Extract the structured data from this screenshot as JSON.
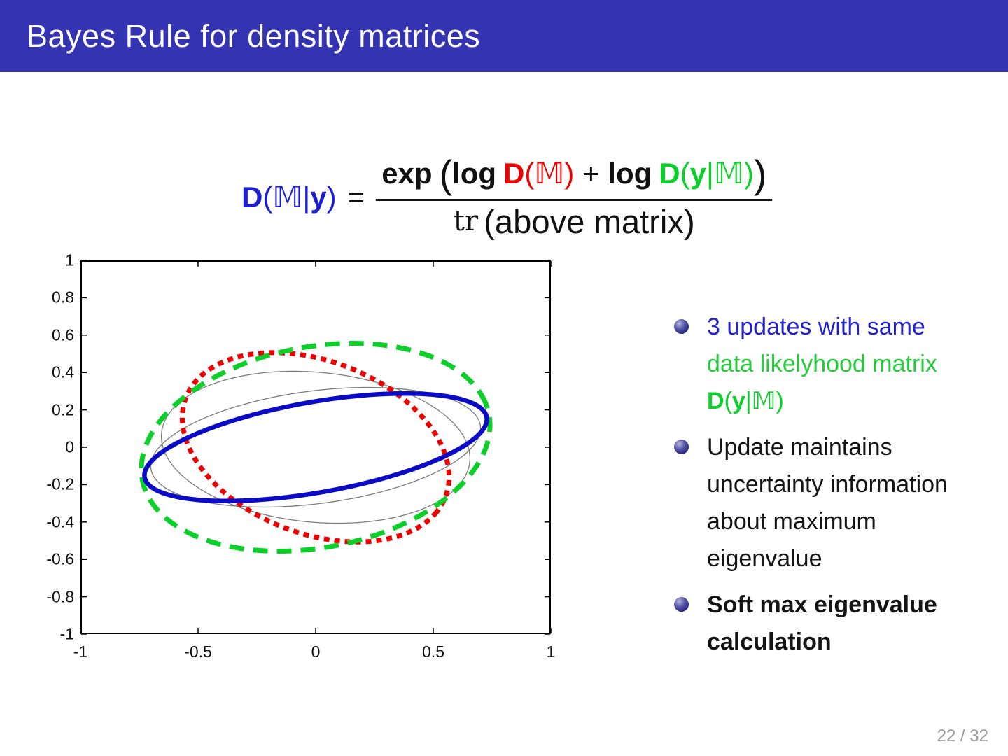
{
  "header": {
    "title": "Bayes Rule for density matrices",
    "bg_color": "#3433b2",
    "text_color": "#ffffff"
  },
  "formula": {
    "lhs": {
      "d": "D",
      "open": "(",
      "m": "𝕄",
      "pipe": "|",
      "y": "y",
      "close": ")"
    },
    "equals": "=",
    "numerator": {
      "exp": "exp",
      "open": "(",
      "log1": "log",
      "prior": {
        "d": "D",
        "open": "(",
        "m": "𝕄",
        "close": ")"
      },
      "plus": "+",
      "log2": "log",
      "likelihood": {
        "d": "D",
        "open": "(",
        "y": "y",
        "pipe": "|",
        "m": "𝕄",
        "close": ")"
      },
      "close": ")"
    },
    "denominator": {
      "tr": "tr",
      "rest": "(above matrix)"
    },
    "colors": {
      "posterior": "#1d1dd2",
      "prior": "#ee0000",
      "likelihood": "#0ccf2a",
      "ink": "#111111"
    }
  },
  "chart_data": {
    "type": "line",
    "title": "",
    "xlabel": "",
    "ylabel": "",
    "xlim": [
      -1,
      1
    ],
    "ylim": [
      -1,
      1
    ],
    "grid": false,
    "legend": "none",
    "xticks": [
      -1,
      -0.5,
      0,
      0.5,
      1
    ],
    "xtick_labels": [
      "-1",
      "-0.5",
      "0",
      "0.5",
      "1"
    ],
    "yticks": [
      1,
      0.8,
      0.6,
      0.4,
      0.2,
      0,
      -0.2,
      -0.4,
      -0.6,
      -0.8,
      -1
    ],
    "ytick_labels": [
      "1",
      "0.8",
      "0.6",
      "0.4",
      "0.2",
      "0",
      "-0.2",
      "-0.4",
      "-0.6",
      "-0.8",
      "-1"
    ],
    "series": [
      {
        "name": "intermediate-update-ellipse-1",
        "shape": "ellipse",
        "cx": 0,
        "cy": 0,
        "a": 0.66,
        "b": 0.4,
        "rot_deg": -8,
        "color": "#7d7d7d",
        "line": "solid",
        "width": 1.3
      },
      {
        "name": "intermediate-update-ellipse-2",
        "shape": "ellipse",
        "cx": 0,
        "cy": 0,
        "a": 0.71,
        "b": 0.3,
        "rot_deg": 10,
        "color": "#7d7d7d",
        "line": "solid",
        "width": 1.3
      },
      {
        "name": "prior-ellipse-red-dotted",
        "shape": "ellipse",
        "cx": 0,
        "cy": 0,
        "a": 0.62,
        "b": 0.44,
        "rot_deg": -35,
        "color": "#ee0000",
        "line": "dotted",
        "width": 7
      },
      {
        "name": "likelihood-ellipse-green-dashed",
        "shape": "ellipse",
        "cx": 0,
        "cy": 0,
        "a": 0.76,
        "b": 0.53,
        "rot_deg": 18,
        "color": "#0ccf2a",
        "line": "dashed",
        "width": 7
      },
      {
        "name": "posterior-ellipse-blue-solid",
        "shape": "ellipse",
        "cx": 0,
        "cy": 0,
        "a": 0.745,
        "b": 0.24,
        "rot_deg": 13,
        "color": "#0b0bc7",
        "line": "solid",
        "width": 6.5
      }
    ]
  },
  "bullets": [
    {
      "lines": [
        {
          "text": "3 updates with same"
        },
        {
          "text": "data likelyhood matrix"
        }
      ],
      "math": {
        "d": "D",
        "open": "(",
        "y": "y",
        "pipe": "|",
        "m": "𝕄",
        "close": ")"
      }
    },
    {
      "lines": [
        {
          "text": "Update maintains"
        },
        {
          "text": "uncertainty information"
        },
        {
          "text": "about maximum"
        },
        {
          "text": "eigenvalue"
        }
      ]
    },
    {
      "lines": [
        {
          "text": "Soft max eigenvalue"
        },
        {
          "text": "calculation"
        }
      ]
    }
  ],
  "footer": {
    "page": "22 / 32"
  }
}
